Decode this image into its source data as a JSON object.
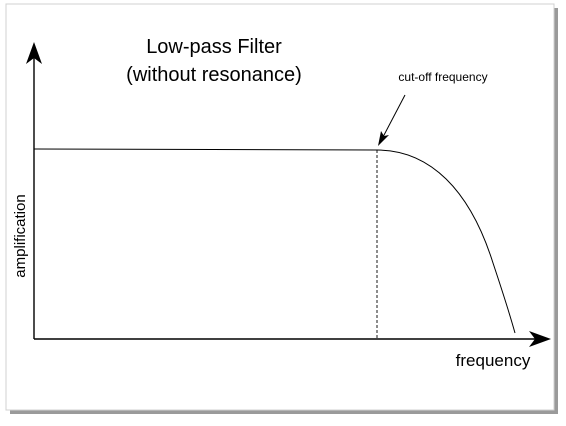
{
  "diagram": {
    "title_line1": "Low-pass Filter",
    "title_line2": "(without resonance)",
    "y_axis_label": "amplification",
    "x_axis_label": "frequency",
    "annotation": "cut-off frequency"
  },
  "colors": {
    "line": "#000000",
    "frame_shadow": "#8a8a8a",
    "frame_border": "#d8d8d8",
    "background": "#ffffff"
  }
}
